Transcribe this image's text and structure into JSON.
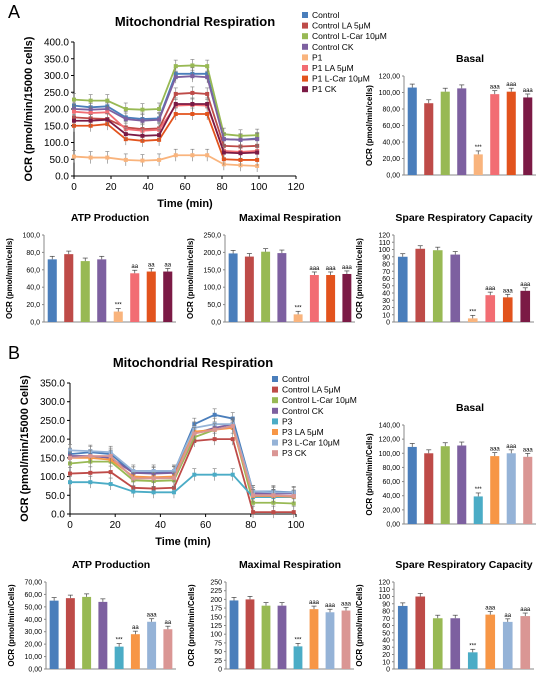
{
  "panels": [
    {
      "label": "A"
    },
    {
      "label": "B"
    }
  ],
  "chart_data": [
    {
      "id": "A-time",
      "type": "line",
      "title": "Mitochondrial Respiration",
      "xlabel": "Time (min)",
      "ylabel": "OCR (pmol/min/15000 cells)",
      "xlim": [
        0,
        120
      ],
      "ylim": [
        0,
        400
      ],
      "x_ticks": [
        0,
        20,
        40,
        60,
        80,
        100,
        120
      ],
      "y_ticks": [
        0,
        50,
        100,
        150,
        200,
        250,
        300,
        350,
        400
      ],
      "y_tick_labels": [
        "0.0",
        "50.0",
        "100.0",
        "150.0",
        "200.0",
        "250.0",
        "300.0",
        "350.0",
        "400.0"
      ],
      "x": [
        0,
        9,
        18,
        28,
        37,
        46,
        55,
        64,
        72,
        81,
        90,
        99
      ],
      "legend_position": "right",
      "series": [
        {
          "name": "Control",
          "color": "#4a7ebb",
          "values": [
            210,
            205,
            208,
            175,
            170,
            172,
            305,
            305,
            305,
            110,
            108,
            112
          ]
        },
        {
          "name": "Control LA 5μM",
          "color": "#be4b48",
          "values": [
            175,
            172,
            170,
            145,
            140,
            142,
            245,
            248,
            245,
            90,
            88,
            90
          ]
        },
        {
          "name": "Control L-Car 10μM",
          "color": "#98b954",
          "values": [
            228,
            225,
            225,
            200,
            198,
            200,
            328,
            330,
            328,
            125,
            120,
            122
          ]
        },
        {
          "name": "Control CK",
          "color": "#7d60a0",
          "values": [
            200,
            198,
            200,
            170,
            165,
            168,
            295,
            298,
            295,
            110,
            108,
            110
          ]
        },
        {
          "name": "P1",
          "color": "#f9b47d",
          "values": [
            58,
            55,
            55,
            48,
            46,
            48,
            62,
            62,
            62,
            35,
            32,
            30
          ]
        },
        {
          "name": "P1 LA 5μM",
          "color": "#f26d73",
          "values": [
            192,
            188,
            190,
            140,
            135,
            138,
            210,
            212,
            210,
            75,
            72,
            75
          ]
        },
        {
          "name": "P1 L-Car 10μM",
          "color": "#e2531d",
          "values": [
            150,
            150,
            155,
            110,
            105,
            108,
            185,
            185,
            185,
            50,
            48,
            48
          ]
        },
        {
          "name": "P1 CK",
          "color": "#7b1a45",
          "values": [
            165,
            165,
            168,
            125,
            120,
            122,
            215,
            215,
            215,
            70,
            68,
            70
          ]
        }
      ]
    },
    {
      "id": "A-basal",
      "type": "bar",
      "title": "Basal",
      "ylabel": "OCR (pmol/min/cells)",
      "ylim": [
        0,
        120
      ],
      "y_ticks": [
        0,
        20,
        40,
        60,
        80,
        100,
        120
      ],
      "y_tick_labels": [
        "0,00",
        "20,00",
        "40,00",
        "60,00",
        "80,00",
        "100,00",
        "120,00"
      ],
      "values": [
        106,
        87,
        101,
        105,
        25,
        98,
        101,
        94
      ],
      "colors": [
        "#4a7ebb",
        "#be4b48",
        "#98b954",
        "#7d60a0",
        "#f9b47d",
        "#f26d73",
        "#e2531d",
        "#7b1a45"
      ],
      "annotations": [
        "",
        "",
        "",
        "",
        "***",
        "aaa",
        "aaa",
        "aaa"
      ]
    },
    {
      "id": "A-atp",
      "type": "bar",
      "title": "ATP Production",
      "ylabel": "OCR (pmol/min/cells)",
      "ylim": [
        0,
        100
      ],
      "y_ticks": [
        0,
        20,
        40,
        60,
        80,
        100
      ],
      "y_tick_labels": [
        "0,0",
        "20,0",
        "40,0",
        "60,0",
        "80,0",
        "100,0"
      ],
      "values": [
        72,
        78,
        70,
        72,
        12,
        56,
        58,
        58
      ],
      "colors": [
        "#4a7ebb",
        "#be4b48",
        "#98b954",
        "#7d60a0",
        "#f9b47d",
        "#f26d73",
        "#e2531d",
        "#7b1a45"
      ],
      "annotations": [
        "",
        "",
        "",
        "",
        "***",
        "aa",
        "aa",
        "aa"
      ]
    },
    {
      "id": "A-maximal",
      "type": "bar",
      "title": "Maximal Respiration",
      "ylabel": "OCR (pmol/min/cells)",
      "ylim": [
        0,
        250
      ],
      "y_ticks": [
        0,
        50,
        100,
        150,
        200,
        250
      ],
      "y_tick_labels": [
        "0,0",
        "50,0",
        "100,0",
        "150,0",
        "200,0",
        "250,0"
      ],
      "values": [
        197,
        188,
        202,
        198,
        22,
        135,
        135,
        138
      ],
      "colors": [
        "#4a7ebb",
        "#be4b48",
        "#98b954",
        "#7d60a0",
        "#f9b47d",
        "#f26d73",
        "#e2531d",
        "#7b1a45"
      ],
      "annotations": [
        "",
        "",
        "",
        "",
        "***",
        "aaa",
        "aaa",
        "aaa"
      ]
    },
    {
      "id": "A-spare",
      "type": "bar",
      "title": "Spare Respiratory Capacity",
      "ylabel": "OCR (pmol/min/cells)",
      "ylim": [
        0,
        120
      ],
      "y_ticks": [
        0,
        10,
        20,
        30,
        40,
        50,
        60,
        70,
        80,
        90,
        100,
        110,
        120
      ],
      "y_tick_labels": [
        "0",
        "10",
        "20",
        "30",
        "40",
        "50",
        "60",
        "70",
        "80",
        "90",
        "100",
        "110",
        "120"
      ],
      "values": [
        90,
        101,
        99,
        93,
        5,
        37,
        34,
        43
      ],
      "colors": [
        "#4a7ebb",
        "#be4b48",
        "#98b954",
        "#7d60a0",
        "#f9b47d",
        "#f26d73",
        "#e2531d",
        "#7b1a45"
      ],
      "annotations": [
        "",
        "",
        "",
        "",
        "***",
        "aaa",
        "aaa",
        "aaa"
      ]
    },
    {
      "id": "B-time",
      "type": "line",
      "title": "Mitochondrial Respiration",
      "xlabel": "Time (min)",
      "ylabel": "OCR (pmol/min/15000 Cells)",
      "xlim": [
        0,
        100
      ],
      "ylim": [
        0,
        350
      ],
      "x_ticks": [
        0,
        20,
        40,
        60,
        80,
        100
      ],
      "y_ticks": [
        0,
        50,
        100,
        150,
        200,
        250,
        300,
        350
      ],
      "y_tick_labels": [
        "0.0",
        "50.0",
        "100.0",
        "150.0",
        "200.0",
        "250.0",
        "300.0",
        "350.0"
      ],
      "x": [
        0,
        9,
        18,
        28,
        37,
        46,
        55,
        64,
        72,
        81,
        90,
        99
      ],
      "legend_position": "right",
      "series": [
        {
          "name": "Control",
          "color": "#4a7ebb",
          "values": [
            160,
            165,
            160,
            110,
            110,
            112,
            240,
            265,
            255,
            60,
            60,
            58
          ]
        },
        {
          "name": "Control LA 5μM",
          "color": "#be4b48",
          "values": [
            108,
            110,
            112,
            70,
            68,
            70,
            195,
            200,
            200,
            5,
            5,
            5
          ]
        },
        {
          "name": "Control L-Car 10μM",
          "color": "#98b954",
          "values": [
            135,
            140,
            140,
            90,
            88,
            90,
            205,
            225,
            235,
            30,
            30,
            28
          ]
        },
        {
          "name": "Control CK",
          "color": "#7d60a0",
          "values": [
            155,
            155,
            150,
            110,
            108,
            110,
            215,
            230,
            240,
            55,
            55,
            55
          ]
        },
        {
          "name": "P3",
          "color": "#4bacc6",
          "values": [
            85,
            85,
            80,
            60,
            58,
            58,
            105,
            105,
            105,
            45,
            45,
            45
          ]
        },
        {
          "name": "P3 LA 5μM",
          "color": "#f79646",
          "values": [
            150,
            150,
            145,
            100,
            98,
            100,
            220,
            225,
            230,
            48,
            48,
            46
          ]
        },
        {
          "name": "P3 L-Car 10μM",
          "color": "#95b3d7",
          "values": [
            170,
            168,
            165,
            115,
            115,
            115,
            230,
            240,
            240,
            60,
            58,
            58
          ]
        },
        {
          "name": "P3 CK",
          "color": "#da9694",
          "values": [
            150,
            155,
            155,
            95,
            95,
            96,
            215,
            225,
            235,
            50,
            50,
            48
          ]
        }
      ]
    },
    {
      "id": "B-basal",
      "type": "bar",
      "title": "Basal",
      "ylabel": "OCR (pmol/min/Cells)",
      "ylim": [
        0,
        140
      ],
      "y_ticks": [
        0,
        20,
        40,
        60,
        80,
        100,
        120,
        140
      ],
      "y_tick_labels": [
        "0,00",
        "20,00",
        "40,00",
        "60,00",
        "80,00",
        "100,00",
        "120,00",
        "140,00"
      ],
      "values": [
        109,
        100,
        110,
        111,
        39,
        96,
        100,
        95
      ],
      "colors": [
        "#4a7ebb",
        "#be4b48",
        "#98b954",
        "#7d60a0",
        "#4bacc6",
        "#f79646",
        "#95b3d7",
        "#da9694"
      ],
      "annotations": [
        "",
        "",
        "",
        "",
        "***",
        "aaa",
        "aaa",
        "aaa"
      ]
    },
    {
      "id": "B-atp",
      "type": "bar",
      "title": "ATP Production",
      "ylabel": "OCR (pmol/min/Cells)",
      "ylim": [
        0,
        70
      ],
      "y_ticks": [
        0,
        10,
        20,
        30,
        40,
        50,
        60,
        70
      ],
      "y_tick_labels": [
        "0,00",
        "10,00",
        "20,00",
        "30,00",
        "40,00",
        "50,00",
        "60,00",
        "70,00"
      ],
      "values": [
        55,
        57,
        58,
        54,
        18,
        28,
        38,
        32
      ],
      "colors": [
        "#4a7ebb",
        "#be4b48",
        "#98b954",
        "#7d60a0",
        "#4bacc6",
        "#f79646",
        "#95b3d7",
        "#da9694"
      ],
      "annotations": [
        "",
        "",
        "",
        "",
        "***",
        "aa",
        "aaa",
        "aa"
      ]
    },
    {
      "id": "B-maximal",
      "type": "bar",
      "title": "Maximal Respiration",
      "ylabel": "OCR (pmol/min/Cells)",
      "ylim": [
        0,
        250
      ],
      "y_ticks": [
        0,
        25,
        50,
        75,
        100,
        125,
        150,
        175,
        200,
        225,
        250
      ],
      "y_tick_labels": [
        "0",
        "25",
        "50",
        "75",
        "100",
        "125",
        "150",
        "175",
        "200",
        "225",
        "250"
      ],
      "values": [
        197,
        200,
        182,
        182,
        65,
        172,
        163,
        168
      ],
      "colors": [
        "#4a7ebb",
        "#be4b48",
        "#98b954",
        "#7d60a0",
        "#4bacc6",
        "#f79646",
        "#95b3d7",
        "#da9694"
      ],
      "annotations": [
        "",
        "",
        "",
        "",
        "***",
        "aaa",
        "aaa",
        "aaa"
      ]
    },
    {
      "id": "B-spare",
      "type": "bar",
      "title": "Spare Respiratory Capacity",
      "ylabel": "OCR (pmol/min/Cells)",
      "ylim": [
        0,
        120
      ],
      "y_ticks": [
        0,
        10,
        20,
        30,
        40,
        50,
        60,
        70,
        80,
        90,
        100,
        110,
        120
      ],
      "y_tick_labels": [
        "0",
        "10",
        "20",
        "30",
        "40",
        "50",
        "60",
        "70",
        "80",
        "90",
        "100",
        "110",
        "120"
      ],
      "values": [
        87,
        100,
        70,
        70,
        23,
        75,
        65,
        73
      ],
      "colors": [
        "#4a7ebb",
        "#be4b48",
        "#98b954",
        "#7d60a0",
        "#4bacc6",
        "#f79646",
        "#95b3d7",
        "#da9694"
      ],
      "annotations": [
        "",
        "",
        "",
        "",
        "***",
        "aaa",
        "aa",
        "aaa"
      ]
    }
  ]
}
